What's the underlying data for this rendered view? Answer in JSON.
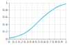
{
  "chart_data": {
    "type": "line",
    "color": "#5bc8e0",
    "grid": true,
    "x": [
      0,
      0.1,
      0.2,
      0.3,
      0.4,
      0.5,
      0.6,
      0.7,
      0.8,
      0.9,
      1
    ],
    "values": [
      0.02,
      0.05,
      0.1,
      0.18,
      0.3,
      0.45,
      0.6,
      0.73,
      0.84,
      0.92,
      0.97
    ],
    "xlim": [
      0,
      1
    ],
    "xticks": [
      0,
      0.1,
      0.2,
      0.3,
      0.4,
      0.5,
      0.6,
      0.7,
      0.8,
      0.9,
      1
    ],
    "ylim": [
      0,
      1
    ],
    "yticks": [
      0,
      0.2,
      0.4,
      0.6,
      0.8,
      1
    ]
  }
}
